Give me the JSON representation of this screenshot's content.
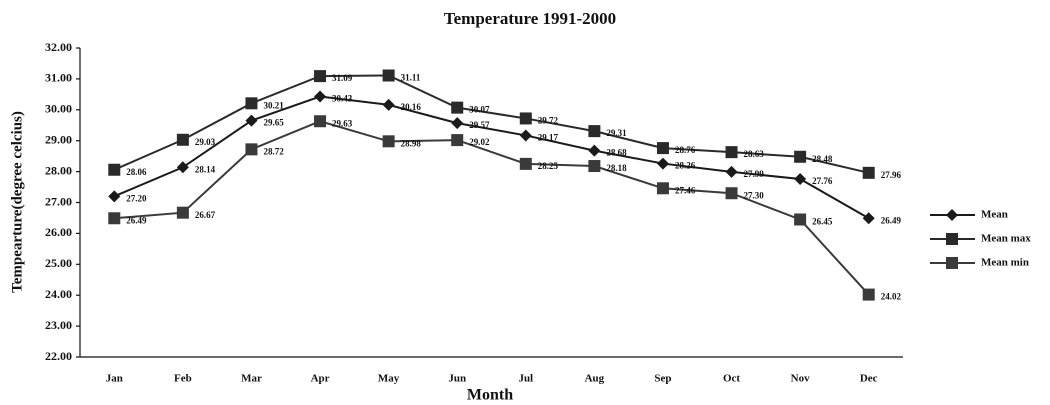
{
  "chart_data": {
    "type": "line",
    "title": "Temperature 1991-2000",
    "x_label": "Month",
    "y_label": "Tempearture(degree celcius)",
    "categories": [
      "Jan",
      "Feb",
      "Mar",
      "Apr",
      "May",
      "Jun",
      "Jul",
      "Aug",
      "Sep",
      "Oct",
      "Nov",
      "Dec"
    ],
    "series": [
      {
        "name": "Mean",
        "color": "#1a1a1a",
        "marker": "diamond",
        "values": [
          27.2,
          28.14,
          29.65,
          30.43,
          30.16,
          29.57,
          29.17,
          28.68,
          28.26,
          27.99,
          27.76,
          26.49
        ],
        "value_labels": [
          "27.20",
          "28.14",
          "29.65",
          "30.43",
          "30.16",
          "29.57",
          "29.17",
          "28.68",
          "28.26",
          "27.99",
          "27.76",
          "26.49"
        ]
      },
      {
        "name": "Mean max",
        "color": "#2a2a2a",
        "marker": "square",
        "values": [
          28.06,
          29.03,
          30.21,
          31.09,
          31.11,
          30.07,
          29.72,
          29.31,
          28.76,
          28.63,
          28.48,
          27.96
        ],
        "value_labels": [
          "28.06",
          "29.03",
          "30.21",
          "31.09",
          "31.11",
          "30.07",
          "29.72",
          "29.31",
          "28.76",
          "28.63",
          "28.48",
          "27.96"
        ]
      },
      {
        "name": "Mean min",
        "color": "#3a3a3a",
        "marker": "square",
        "values": [
          26.49,
          26.67,
          28.72,
          29.63,
          28.98,
          29.02,
          28.25,
          28.18,
          27.46,
          27.3,
          26.45,
          24.02
        ],
        "value_labels": [
          "26.49",
          "26.67",
          "28.72",
          "29.63",
          "28.98",
          "29.02",
          "28.25",
          "28.18",
          "27.46",
          "27.30",
          "26.45",
          "24.02"
        ]
      }
    ],
    "ylim": [
      22,
      32
    ],
    "yticks": [
      {
        "value": 22,
        "label": "22.00"
      },
      {
        "value": 23,
        "label": "23.00"
      },
      {
        "value": 24,
        "label": "24.00"
      },
      {
        "value": 25,
        "label": "25.00"
      },
      {
        "value": 26,
        "label": "26.00"
      },
      {
        "value": 27,
        "label": "27.00"
      },
      {
        "value": 28,
        "label": "28.00"
      },
      {
        "value": 29,
        "label": "29.00"
      },
      {
        "value": 30,
        "label": "30.00"
      },
      {
        "value": 31,
        "label": "31.00"
      },
      {
        "value": 32,
        "label": "32.00"
      }
    ],
    "grid": false,
    "legend": "right"
  }
}
